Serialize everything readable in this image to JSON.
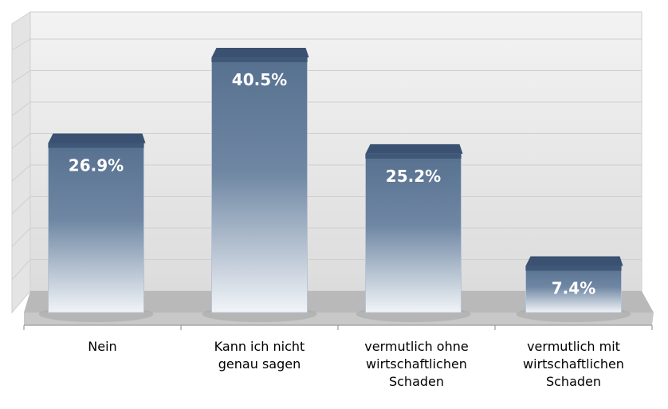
{
  "chart_data": {
    "type": "bar",
    "title": "",
    "xlabel": "",
    "ylabel": "",
    "categories": [
      [
        "Nein"
      ],
      [
        "Kann ich nicht",
        "genau sagen"
      ],
      [
        "vermutlich ohne",
        "wirtschaftlichen",
        "Schaden"
      ],
      [
        "vermutlich mit",
        "wirtschaftlichen",
        "Schaden"
      ]
    ],
    "values": [
      26.9,
      40.5,
      25.2,
      7.4
    ],
    "value_labels": [
      "26.9%",
      "40.5%",
      "25.2%",
      "7.4%"
    ],
    "ylim": [
      0,
      45
    ],
    "grid_step": 5,
    "grid": true,
    "legend": "none",
    "bar_color": "#3f5878"
  }
}
